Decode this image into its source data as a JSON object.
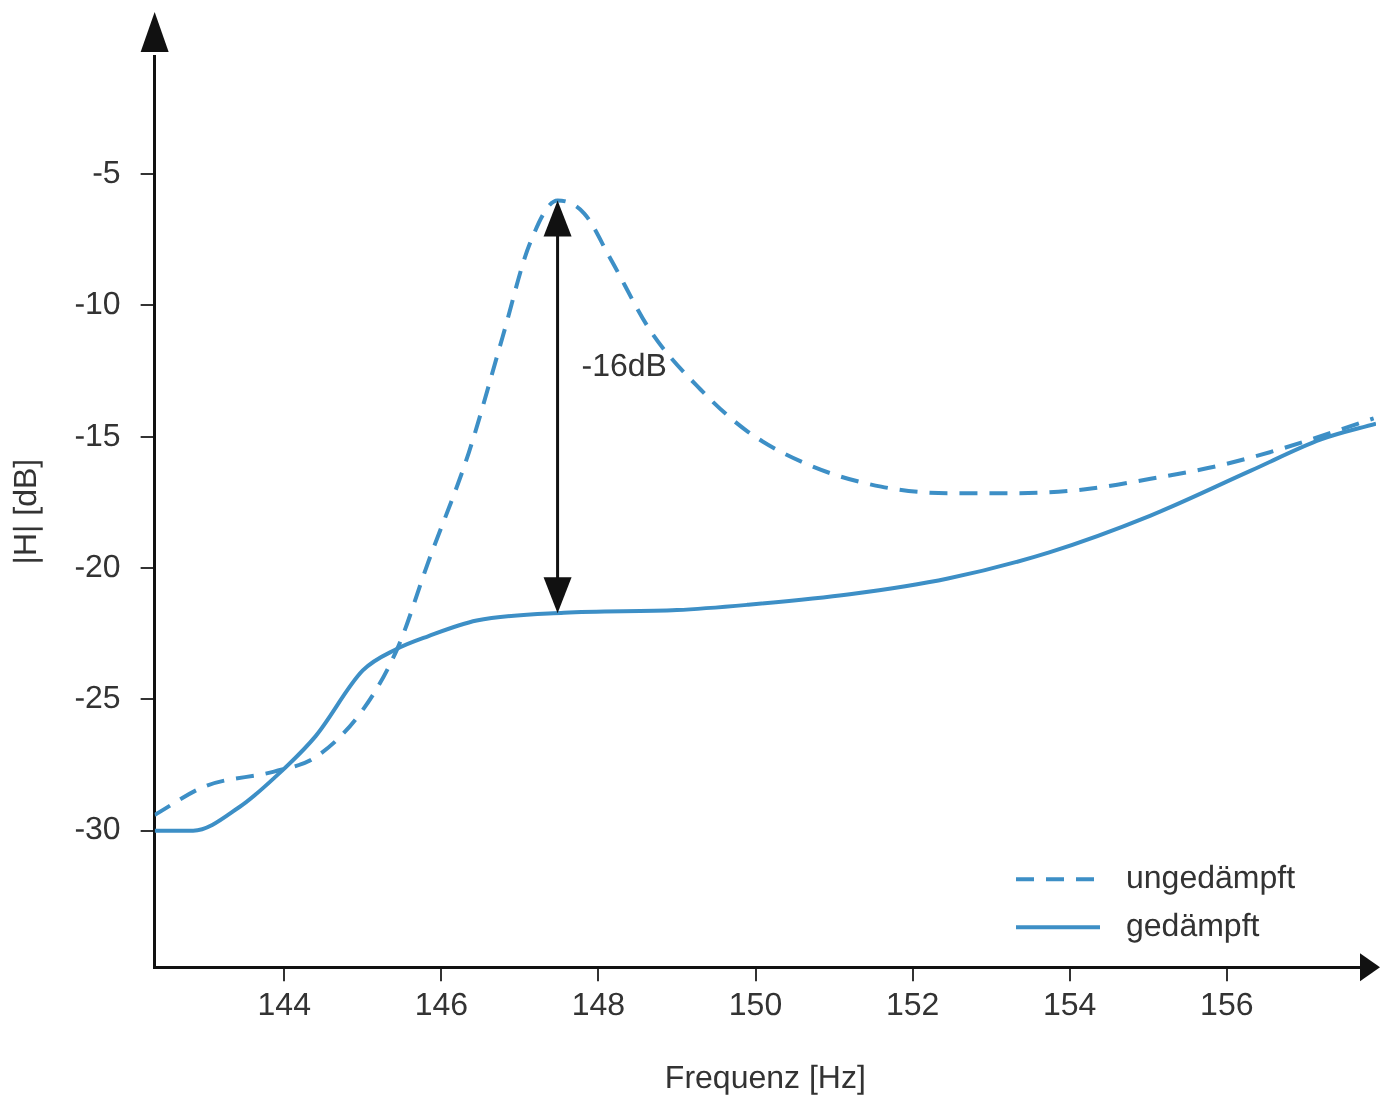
{
  "chart_data": {
    "type": "line",
    "xlabel": "Frequenz [Hz]",
    "ylabel": "|H| [dB]",
    "xlim": [
      142.35,
      157.9
    ],
    "xticks": [
      144,
      146,
      148,
      150,
      152,
      154,
      156
    ],
    "ylim": [
      -35.2,
      -0.5
    ],
    "yticks": [
      -5,
      -10,
      -15,
      -20,
      -25,
      -30
    ],
    "grid": false,
    "legend": "bottom right",
    "marker": "none",
    "annotations": [
      "-16dB"
    ],
    "series": [
      {
        "name": "ungedämpft",
        "color": "#3d8fc6",
        "line_style": "dashed",
        "x": [
          142.35,
          143.0,
          143.87,
          144.4,
          145.0,
          145.45,
          145.83,
          146.35,
          146.78,
          147.12,
          147.48,
          147.82,
          148.15,
          148.67,
          149.3,
          149.9,
          150.7,
          151.6,
          152.45,
          153.3,
          154.2,
          155.03,
          155.9,
          156.76,
          157.87
        ],
        "values": [
          -29.4,
          -28.3,
          -27.75,
          -27.2,
          -25.4,
          -23,
          -19.8,
          -15.6,
          -11.2,
          -7.7,
          -6.0,
          -6.5,
          -8.2,
          -11.0,
          -13.2,
          -14.8,
          -16.1,
          -16.9,
          -17.15,
          -17.15,
          -17.0,
          -16.6,
          -16.1,
          -15.4,
          -14.3
        ]
      },
      {
        "name": "gedämpft",
        "color": "#3d8fc6",
        "line_style": "solid",
        "x": [
          142.35,
          142.84,
          143.43,
          143.87,
          144.4,
          145.0,
          145.42,
          145.83,
          146.45,
          147.56,
          149.0,
          149.9,
          151.2,
          152.45,
          153.74,
          155.03,
          156.3,
          157.2,
          157.9
        ],
        "values": [
          -30.0,
          -30.0,
          -29.1,
          -28.0,
          -26.4,
          -23.9,
          -23.1,
          -22.6,
          -22.0,
          -21.7,
          -21.6,
          -21.4,
          -21.0,
          -20.4,
          -19.4,
          -18.0,
          -16.3,
          -15.1,
          -14.5
        ]
      }
    ]
  }
}
